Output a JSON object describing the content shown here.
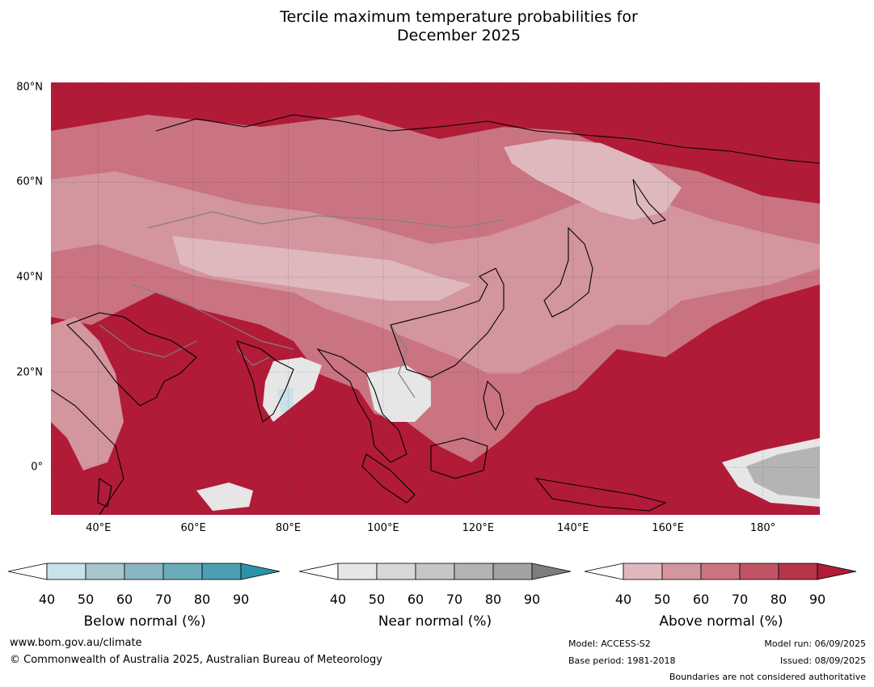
{
  "title": {
    "line1": "Tercile maximum temperature probabilities for",
    "line2": "December 2025"
  },
  "map": {
    "projection": "equirectangular",
    "lon_range": [
      30,
      192
    ],
    "lat_range": [
      -10,
      81
    ],
    "lat_ticks": [
      {
        "value": 80,
        "label": "80°N"
      },
      {
        "value": 60,
        "label": "60°N"
      },
      {
        "value": 40,
        "label": "40°N"
      },
      {
        "value": 20,
        "label": "20°N"
      },
      {
        "value": 0,
        "label": "0°"
      }
    ],
    "lon_ticks": [
      {
        "value": 40,
        "label": "40°E"
      },
      {
        "value": 60,
        "label": "60°E"
      },
      {
        "value": 80,
        "label": "80°E"
      },
      {
        "value": 100,
        "label": "100°E"
      },
      {
        "value": 120,
        "label": "120°E"
      },
      {
        "value": 140,
        "label": "140°E"
      },
      {
        "value": 160,
        "label": "160°E"
      },
      {
        "value": 180,
        "label": "180°"
      }
    ],
    "gridlines": true,
    "coastlines": true,
    "country_boundaries": true,
    "background_color": "#B11B38"
  },
  "colorbars": [
    {
      "name": "below",
      "label": "Below normal (%)",
      "ticks": [
        "40",
        "50",
        "60",
        "70",
        "80",
        "90"
      ],
      "colors": [
        "#ffffff",
        "#C9E1E8",
        "#A7C5CC",
        "#88B7C3",
        "#6BACBB",
        "#4AA0B2",
        "#2A92A8"
      ]
    },
    {
      "name": "near",
      "label": "Near normal (%)",
      "ticks": [
        "40",
        "50",
        "60",
        "70",
        "80",
        "90"
      ],
      "colors": [
        "#ffffff",
        "#E6E6E6",
        "#D7D7D7",
        "#C6C6C6",
        "#B4B4B4",
        "#A2A2A2",
        "#7D7D7D"
      ]
    },
    {
      "name": "above",
      "label": "Above normal (%)",
      "ticks": [
        "40",
        "50",
        "60",
        "70",
        "80",
        "90"
      ],
      "colors": [
        "#ffffff",
        "#DFB8BE",
        "#D3959E",
        "#CA7481",
        "#C05465",
        "#B7344B",
        "#B11B38"
      ]
    }
  ],
  "footer": {
    "website": "www.bom.gov.au/climate",
    "copyright": "© Commonwealth of Australia 2025, Australian Bureau of Meteorology",
    "model": "Model: ACCESS-S2",
    "base_period": "Base period: 1981-2018",
    "model_run": "Model run: 06/09/2025",
    "issued": "Issued: 08/09/2025",
    "boundaries_note": "Boundaries are not considered authoritative"
  }
}
